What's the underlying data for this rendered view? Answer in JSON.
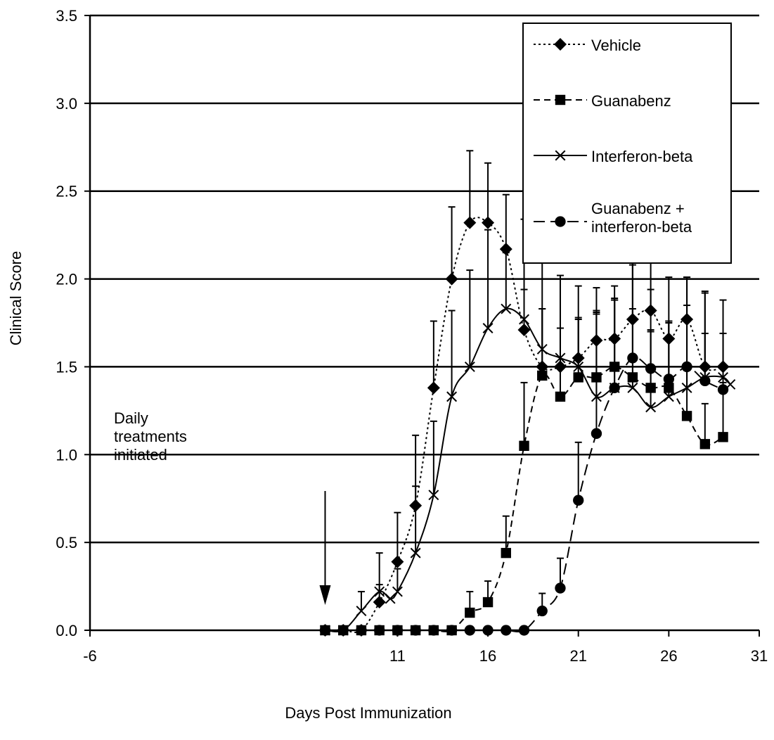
{
  "chart_data": {
    "type": "line",
    "xlabel": "Days Post Immunization",
    "ylabel": "Clinical Score",
    "xlim": [
      -6,
      31
    ],
    "ylim": [
      0.0,
      3.5
    ],
    "x_ticks": [
      {
        "value": -6,
        "label": "-6"
      },
      {
        "value": 11,
        "label": "11"
      },
      {
        "value": 16,
        "label": "16"
      },
      {
        "value": 21,
        "label": "21"
      },
      {
        "value": 26,
        "label": "26"
      },
      {
        "value": 31,
        "label": "31"
      }
    ],
    "y_ticks": [
      {
        "value": 0.0,
        "label": "0.0"
      },
      {
        "value": 0.5,
        "label": "0.5"
      },
      {
        "value": 1.0,
        "label": "1.0"
      },
      {
        "value": 1.5,
        "label": "1.5"
      },
      {
        "value": 2.0,
        "label": "2.0"
      },
      {
        "value": 2.5,
        "label": "2.5"
      },
      {
        "value": 3.0,
        "label": "3.0"
      },
      {
        "value": 3.5,
        "label": "3.5"
      }
    ],
    "grid": "horizontal",
    "legend_position": "top-right",
    "annotation": {
      "text": "Daily\ntreatments\ninitiated",
      "arrow_x": 7
    },
    "series": [
      {
        "name": "Vehicle",
        "style": "dotted",
        "marker": "diamond",
        "points": [
          {
            "x": 7,
            "y": 0.0,
            "err": 0
          },
          {
            "x": 8,
            "y": 0.0,
            "err": 0
          },
          {
            "x": 9,
            "y": 0.0,
            "err": 0
          },
          {
            "x": 10,
            "y": 0.16,
            "err": 0.1
          },
          {
            "x": 11,
            "y": 0.39,
            "err": 0.28
          },
          {
            "x": 12,
            "y": 0.71,
            "err": 0.4
          },
          {
            "x": 13,
            "y": 1.38,
            "err": 0.38
          },
          {
            "x": 14,
            "y": 2.0,
            "err": 0.41
          },
          {
            "x": 15,
            "y": 2.32,
            "err": 0.41
          },
          {
            "x": 16,
            "y": 2.32,
            "err": 0.34
          },
          {
            "x": 17,
            "y": 2.17,
            "err": 0.31
          },
          {
            "x": 18,
            "y": 1.71,
            "err": 0.63
          },
          {
            "x": 19,
            "y": 1.5,
            "err": 0.64
          },
          {
            "x": 20,
            "y": 1.5,
            "err": 0.52
          },
          {
            "x": 21,
            "y": 1.55,
            "err": 0.41
          },
          {
            "x": 22,
            "y": 1.65,
            "err": 0.3
          },
          {
            "x": 23,
            "y": 1.66,
            "err": 0.3
          },
          {
            "x": 24,
            "y": 1.77,
            "err": 0.37
          },
          {
            "x": 25,
            "y": 1.82,
            "err": 0.31
          },
          {
            "x": 26,
            "y": 1.66,
            "err": 0.35
          },
          {
            "x": 27,
            "y": 1.77,
            "err": 0.24
          },
          {
            "x": 28,
            "y": 1.5,
            "err": 0.43
          },
          {
            "x": 29,
            "y": 1.5,
            "err": 0.38
          }
        ]
      },
      {
        "name": "Guanabenz",
        "style": "dashed",
        "marker": "square",
        "points": [
          {
            "x": 7,
            "y": 0.0,
            "err": 0
          },
          {
            "x": 8,
            "y": 0.0,
            "err": 0
          },
          {
            "x": 9,
            "y": 0.0,
            "err": 0
          },
          {
            "x": 10,
            "y": 0.0,
            "err": 0
          },
          {
            "x": 11,
            "y": 0.0,
            "err": 0
          },
          {
            "x": 12,
            "y": 0.0,
            "err": 0
          },
          {
            "x": 13,
            "y": 0.0,
            "err": 0
          },
          {
            "x": 14,
            "y": 0.0,
            "err": 0
          },
          {
            "x": 15,
            "y": 0.1,
            "err": 0.12
          },
          {
            "x": 16,
            "y": 0.16,
            "err": 0.12
          },
          {
            "x": 17,
            "y": 0.44,
            "err": 0.21
          },
          {
            "x": 18,
            "y": 1.05,
            "err": 0.36
          },
          {
            "x": 19,
            "y": 1.45,
            "err": 0.38
          },
          {
            "x": 20,
            "y": 1.33,
            "err": 0.39
          },
          {
            "x": 21,
            "y": 1.44,
            "err": 0.34
          },
          {
            "x": 22,
            "y": 1.44,
            "err": 0.36
          },
          {
            "x": 23,
            "y": 1.5,
            "err": 0.38
          },
          {
            "x": 24,
            "y": 1.44,
            "err": 0.39
          },
          {
            "x": 25,
            "y": 1.38,
            "err": 0.33
          },
          {
            "x": 26,
            "y": 1.38,
            "err": 0.38
          },
          {
            "x": 27,
            "y": 1.22,
            "err": 0.3
          },
          {
            "x": 28,
            "y": 1.06,
            "err": 0.23
          },
          {
            "x": 29,
            "y": 1.1,
            "err": 0.31
          }
        ]
      },
      {
        "name": "Interferon-beta",
        "style": "solid",
        "marker": "x",
        "points": [
          {
            "x": 7,
            "y": 0.0,
            "err": 0
          },
          {
            "x": 8,
            "y": 0.0,
            "err": 0
          },
          {
            "x": 9,
            "y": 0.11,
            "err": 0.11
          },
          {
            "x": 10,
            "y": 0.22,
            "err": 0.22
          },
          {
            "x": 10.6,
            "y": 0.18,
            "err": 0
          },
          {
            "x": 11,
            "y": 0.22,
            "err": 0.13
          },
          {
            "x": 12,
            "y": 0.44,
            "err": 0.38
          },
          {
            "x": 13,
            "y": 0.77,
            "err": 0.42
          },
          {
            "x": 14,
            "y": 1.33,
            "err": 0.49
          },
          {
            "x": 15,
            "y": 1.5,
            "err": 0.55
          },
          {
            "x": 16,
            "y": 1.72,
            "err": 0.56
          },
          {
            "x": 17,
            "y": 1.83,
            "err": 0.32
          },
          {
            "x": 18,
            "y": 1.77,
            "err": 0.17
          },
          {
            "x": 19,
            "y": 1.6,
            "err": 0.23
          },
          {
            "x": 20,
            "y": 1.55,
            "err": 0.17
          },
          {
            "x": 21,
            "y": 1.5,
            "err": 0.27
          },
          {
            "x": 22,
            "y": 1.33,
            "err": 0.48
          },
          {
            "x": 23,
            "y": 1.38,
            "err": 0.5
          },
          {
            "x": 24,
            "y": 1.38,
            "err": 0.7
          },
          {
            "x": 25,
            "y": 1.27,
            "err": 0.43
          },
          {
            "x": 26,
            "y": 1.33,
            "err": 0.42
          },
          {
            "x": 27,
            "y": 1.38,
            "err": 0.47
          },
          {
            "x": 28,
            "y": 1.44,
            "err": 0.25
          },
          {
            "x": 29,
            "y": 1.44,
            "err": 0.25
          },
          {
            "x": 29.4,
            "y": 1.4,
            "err": 0
          }
        ]
      },
      {
        "name": "Guanabenz +\ninterferon-beta",
        "style": "longdash",
        "marker": "circle",
        "points": [
          {
            "x": 7,
            "y": 0.0,
            "err": 0
          },
          {
            "x": 8,
            "y": 0.0,
            "err": 0
          },
          {
            "x": 9,
            "y": 0.0,
            "err": 0
          },
          {
            "x": 10,
            "y": 0.0,
            "err": 0
          },
          {
            "x": 11,
            "y": 0.0,
            "err": 0
          },
          {
            "x": 12,
            "y": 0.0,
            "err": 0
          },
          {
            "x": 13,
            "y": 0.0,
            "err": 0
          },
          {
            "x": 14,
            "y": 0.0,
            "err": 0
          },
          {
            "x": 15,
            "y": 0.0,
            "err": 0
          },
          {
            "x": 16,
            "y": 0.0,
            "err": 0
          },
          {
            "x": 17,
            "y": 0.0,
            "err": 0
          },
          {
            "x": 18,
            "y": 0.0,
            "err": 0
          },
          {
            "x": 19,
            "y": 0.11,
            "err": 0.1
          },
          {
            "x": 20,
            "y": 0.24,
            "err": 0.17
          },
          {
            "x": 21,
            "y": 0.74,
            "err": 0.33
          },
          {
            "x": 22,
            "y": 1.12,
            "err": 0.7
          },
          {
            "x": 23,
            "y": 1.38,
            "err": 0.51
          },
          {
            "x": 24,
            "y": 1.55,
            "err": 0.59
          },
          {
            "x": 25,
            "y": 1.49,
            "err": 0.45
          },
          {
            "x": 26,
            "y": 1.43,
            "err": 0.33
          },
          {
            "x": 27,
            "y": 1.5,
            "err": 0.51
          },
          {
            "x": 28,
            "y": 1.42,
            "err": 0.5
          },
          {
            "x": 29,
            "y": 1.37,
            "err": 0.32
          }
        ]
      }
    ]
  }
}
